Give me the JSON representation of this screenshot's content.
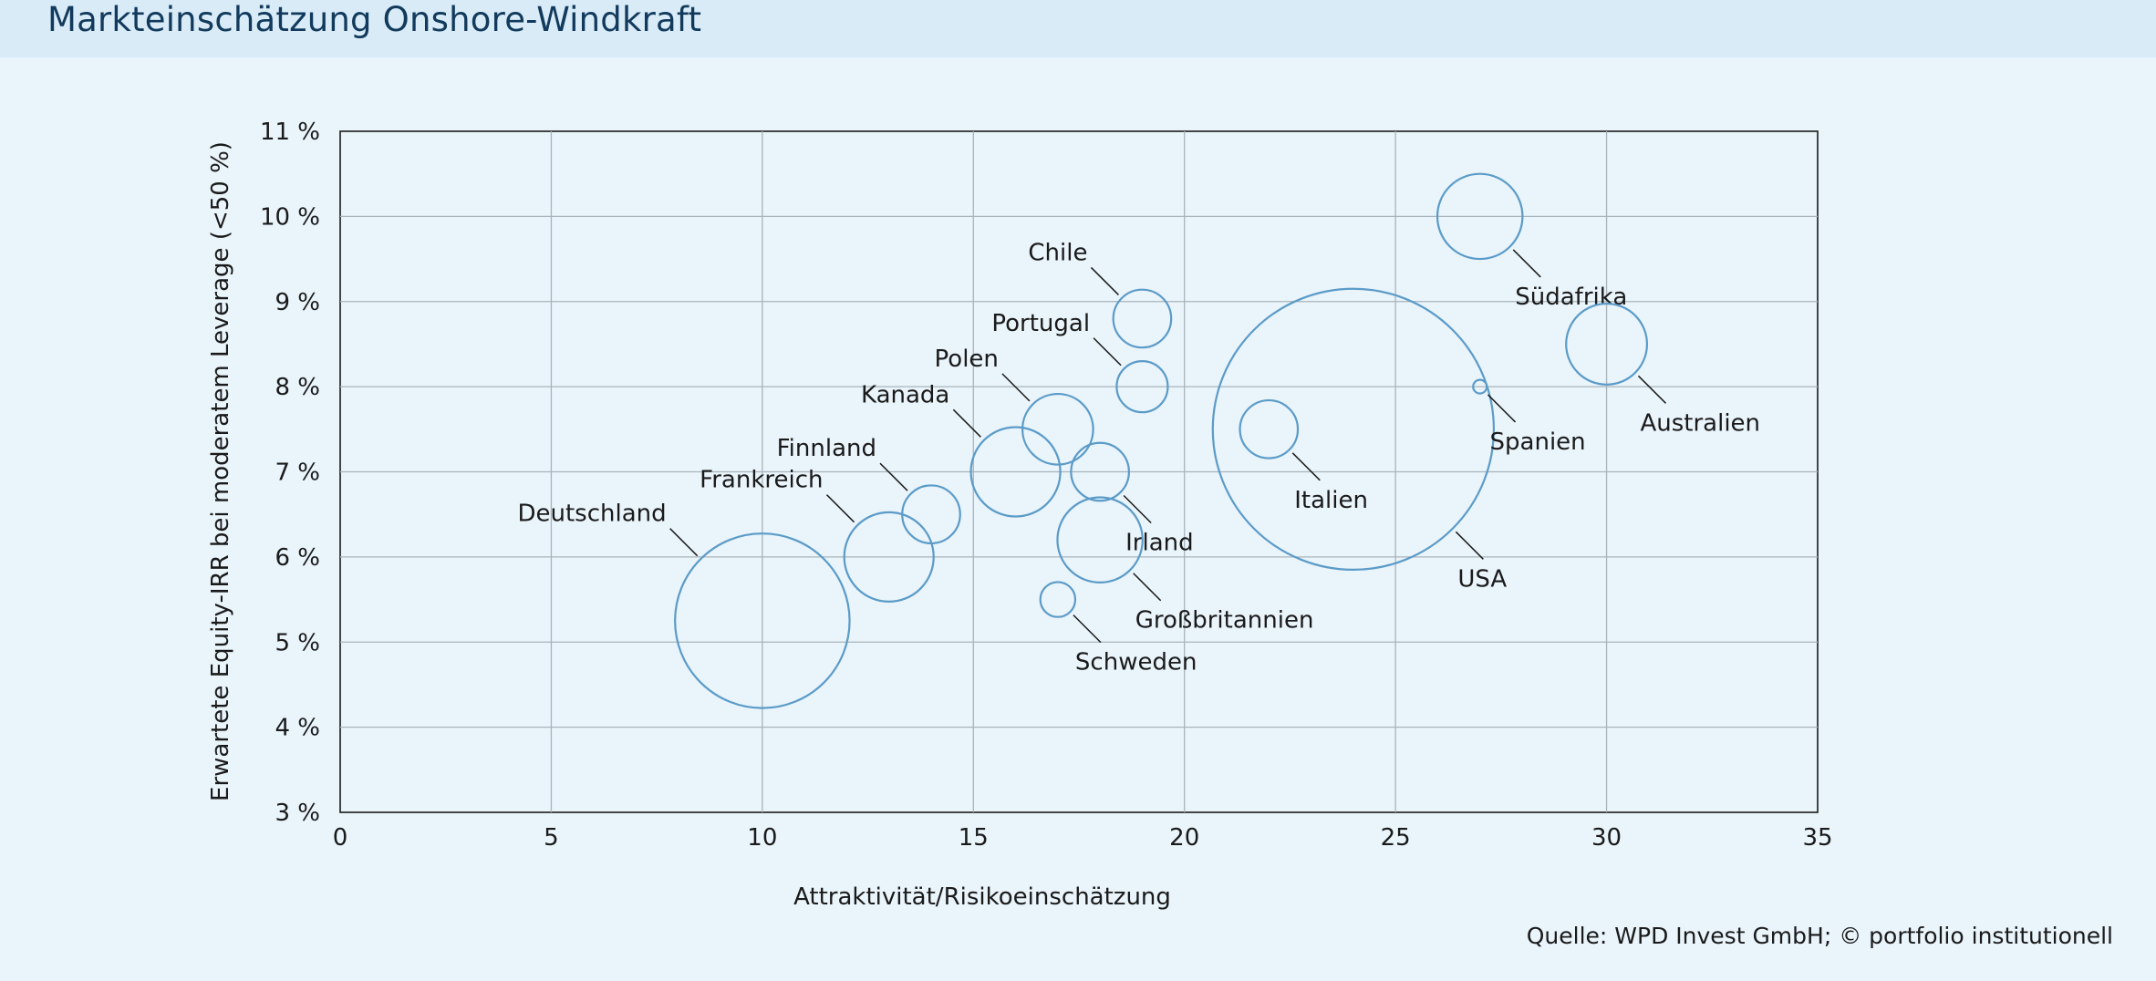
{
  "page": {
    "title": "Markteinschätzung Onshore-Windkraft",
    "source": "Quelle: WPD Invest GmbH; © portfolio institutionell"
  },
  "colors": {
    "header_band": "#d8ebf7",
    "background": "#e9f4fb",
    "bubble_stroke": "#5b9bc8",
    "grid": "#a9b3bb",
    "title": "#123a5c"
  },
  "chart_data": {
    "type": "scatter",
    "subtype": "bubble",
    "xlabel": "Attraktivität/Risikoeinschätzung",
    "ylabel": "Erwartete Equity-IRR bei moderatem Leverage (<50 %)",
    "xlim": [
      0,
      35
    ],
    "ylim": [
      3,
      11
    ],
    "x_ticks": [
      0,
      5,
      10,
      15,
      20,
      25,
      30,
      35
    ],
    "x_tick_labels": [
      "0",
      "5",
      "10",
      "15",
      "20",
      "25",
      "30",
      "35"
    ],
    "y_ticks": [
      3,
      4,
      5,
      6,
      7,
      8,
      9,
      10,
      11
    ],
    "y_tick_labels": [
      "3 %",
      "4 %",
      "5 %",
      "6 %",
      "7 %",
      "8 %",
      "9 %",
      "10 %",
      "11 %"
    ],
    "grid": true,
    "bubble_fill": "none",
    "points": [
      {
        "name": "Deutschland",
        "x": 10,
        "y": 5.25,
        "size": 2.05,
        "label_side": "upper-left"
      },
      {
        "name": "Frankreich",
        "x": 13,
        "y": 6.0,
        "size": 1.05,
        "label_side": "upper-left"
      },
      {
        "name": "Finnland",
        "x": 14,
        "y": 6.5,
        "size": 0.68,
        "label_side": "upper-left"
      },
      {
        "name": "Kanada",
        "x": 16,
        "y": 7.0,
        "size": 1.05,
        "label_side": "upper-left"
      },
      {
        "name": "Polen",
        "x": 17,
        "y": 7.5,
        "size": 0.83,
        "label_side": "upper-left"
      },
      {
        "name": "Irland",
        "x": 18,
        "y": 7.0,
        "size": 0.68,
        "label_side": "lower-right"
      },
      {
        "name": "Großbritannien",
        "x": 18,
        "y": 6.2,
        "size": 1.0,
        "label_side": "lower-right"
      },
      {
        "name": "Schweden",
        "x": 17,
        "y": 5.5,
        "size": 0.41,
        "label_side": "lower-right"
      },
      {
        "name": "Chile",
        "x": 19,
        "y": 8.8,
        "size": 0.68,
        "label_side": "upper-left"
      },
      {
        "name": "Portugal",
        "x": 19,
        "y": 8.0,
        "size": 0.6,
        "label_side": "upper-left"
      },
      {
        "name": "Italien",
        "x": 22,
        "y": 7.5,
        "size": 0.68,
        "label_side": "lower-right"
      },
      {
        "name": "USA",
        "x": 24,
        "y": 7.5,
        "size": 3.3,
        "label_side": "lower-right"
      },
      {
        "name": "Spanien",
        "x": 27,
        "y": 8.0,
        "size": 0.16,
        "label_side": "lower-right"
      },
      {
        "name": "Südafrika",
        "x": 27,
        "y": 10.0,
        "size": 1.0,
        "label_side": "lower-right"
      },
      {
        "name": "Australien",
        "x": 30,
        "y": 8.5,
        "size": 0.95,
        "label_side": "lower-right"
      }
    ]
  }
}
